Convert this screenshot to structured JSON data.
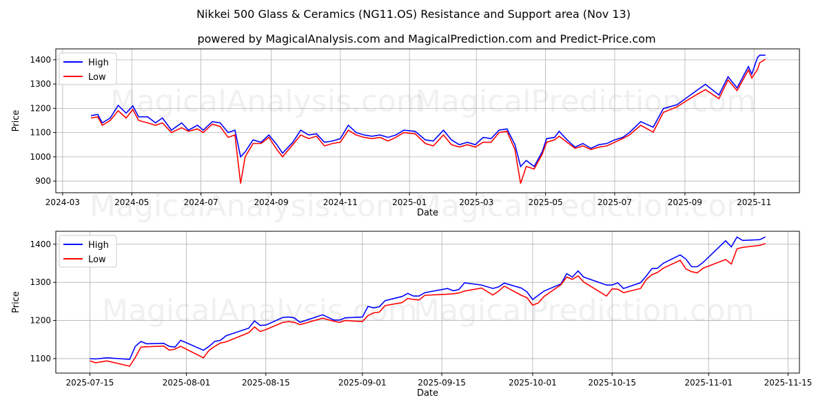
{
  "title": "Nikkei 500 Glass & Ceramics (NG11.OS) Resistance and Support area (Nov 13)",
  "subtitle": "powered by MagicalAnalysis.com and MagicalPrediction.com and Predict-Price.com",
  "watermarks": [
    "MagicalAnalysis.com",
    "MagicalPrediction.com"
  ],
  "colors": {
    "high": "#0000ff",
    "low": "#ff0000",
    "grid": "#b0b0b0"
  },
  "chart_data": [
    {
      "type": "line",
      "xlabel": "Date",
      "ylabel": "Price",
      "xlim": [
        "2024-02-24",
        "2025-12-11"
      ],
      "ylim": [
        852,
        1445
      ],
      "grid": true,
      "legend": "top-left",
      "xticks": [
        "2024-03",
        "2024-05",
        "2024-07",
        "2024-09",
        "2024-11",
        "2025-01",
        "2025-03",
        "2025-05",
        "2025-07",
        "2025-09",
        "2025-11"
      ],
      "yticks": [
        900,
        1000,
        1100,
        1200,
        1300,
        1400
      ],
      "series_names": [
        "High",
        "Low"
      ],
      "x": [
        "2024-03-26",
        "2024-04-01",
        "2024-04-05",
        "2024-04-12",
        "2024-04-19",
        "2024-04-26",
        "2024-05-02",
        "2024-05-07",
        "2024-05-15",
        "2024-05-22",
        "2024-05-28",
        "2024-06-05",
        "2024-06-14",
        "2024-06-20",
        "2024-06-28",
        "2024-07-03",
        "2024-07-11",
        "2024-07-18",
        "2024-07-25",
        "2024-07-31",
        "2024-08-05",
        "2024-08-09",
        "2024-08-16",
        "2024-08-23",
        "2024-08-30",
        "2024-09-06",
        "2024-09-11",
        "2024-09-20",
        "2024-09-27",
        "2024-10-04",
        "2024-10-11",
        "2024-10-18",
        "2024-10-25",
        "2024-11-01",
        "2024-11-08",
        "2024-11-15",
        "2024-11-22",
        "2024-11-29",
        "2024-12-06",
        "2024-12-13",
        "2024-12-20",
        "2024-12-27",
        "2025-01-06",
        "2025-01-15",
        "2025-01-22",
        "2025-01-31",
        "2025-02-07",
        "2025-02-14",
        "2025-02-21",
        "2025-02-28",
        "2025-03-07",
        "2025-03-14",
        "2025-03-21",
        "2025-03-28",
        "2025-04-04",
        "2025-04-09",
        "2025-04-14",
        "2025-04-21",
        "2025-04-28",
        "2025-05-02",
        "2025-05-09",
        "2025-05-13",
        "2025-05-20",
        "2025-05-27",
        "2025-06-03",
        "2025-06-10",
        "2025-06-17",
        "2025-06-24",
        "2025-07-01",
        "2025-07-08",
        "2025-07-14",
        "2025-07-24",
        "2025-08-04",
        "2025-08-13",
        "2025-08-25",
        "2025-09-05",
        "2025-09-19",
        "2025-10-01",
        "2025-10-09",
        "2025-10-17",
        "2025-10-27",
        "2025-10-30",
        "2025-11-04",
        "2025-11-06",
        "2025-11-11"
      ],
      "high": [
        1170,
        1175,
        1140,
        1160,
        1212,
        1180,
        1210,
        1165,
        1165,
        1140,
        1160,
        1110,
        1140,
        1110,
        1130,
        1110,
        1145,
        1140,
        1100,
        1110,
        1000,
        1020,
        1070,
        1060,
        1090,
        1050,
        1015,
        1060,
        1110,
        1090,
        1095,
        1060,
        1065,
        1075,
        1130,
        1100,
        1090,
        1085,
        1090,
        1080,
        1090,
        1110,
        1105,
        1070,
        1065,
        1110,
        1070,
        1050,
        1060,
        1050,
        1080,
        1075,
        1110,
        1115,
        1050,
        960,
        985,
        960,
        1020,
        1075,
        1080,
        1105,
        1070,
        1040,
        1055,
        1035,
        1050,
        1055,
        1070,
        1080,
        1100,
        1145,
        1122,
        1199,
        1215,
        1252,
        1299,
        1255,
        1330,
        1284,
        1372,
        1341,
        1409,
        1419,
        1419
      ],
      "low": [
        1160,
        1165,
        1130,
        1150,
        1190,
        1160,
        1195,
        1150,
        1140,
        1130,
        1140,
        1100,
        1120,
        1105,
        1115,
        1100,
        1135,
        1125,
        1080,
        1090,
        890,
        1000,
        1055,
        1055,
        1080,
        1030,
        1000,
        1050,
        1090,
        1075,
        1085,
        1045,
        1055,
        1060,
        1110,
        1090,
        1080,
        1075,
        1080,
        1065,
        1080,
        1100,
        1095,
        1055,
        1045,
        1090,
        1050,
        1040,
        1050,
        1040,
        1060,
        1060,
        1100,
        1105,
        1030,
        890,
        960,
        950,
        1010,
        1060,
        1070,
        1085,
        1060,
        1035,
        1045,
        1030,
        1040,
        1045,
        1060,
        1075,
        1090,
        1130,
        1102,
        1183,
        1206,
        1239,
        1277,
        1240,
        1317,
        1273,
        1358,
        1325,
        1360,
        1388,
        1402
      ]
    },
    {
      "type": "line",
      "xlabel": "Date",
      "ylabel": "Price",
      "xlim": [
        "2025-07-09",
        "2025-11-17"
      ],
      "ylim": [
        1062,
        1434
      ],
      "grid": true,
      "legend": "top-left",
      "xticks": [
        "2025-07-15",
        "2025-08-01",
        "2025-08-15",
        "2025-09-01",
        "2025-09-15",
        "2025-10-01",
        "2025-10-15",
        "2025-11-01",
        "2025-11-15"
      ],
      "yticks": [
        1100,
        1200,
        1300,
        1400
      ],
      "series_names": [
        "High",
        "Low"
      ],
      "x": [
        "2025-07-15",
        "2025-07-16",
        "2025-07-18",
        "2025-07-22",
        "2025-07-23",
        "2025-07-24",
        "2025-07-25",
        "2025-07-28",
        "2025-07-29",
        "2025-07-30",
        "2025-07-31",
        "2025-08-04",
        "2025-08-05",
        "2025-08-06",
        "2025-08-07",
        "2025-08-08",
        "2025-08-12",
        "2025-08-13",
        "2025-08-14",
        "2025-08-15",
        "2025-08-18",
        "2025-08-19",
        "2025-08-20",
        "2025-08-21",
        "2025-08-25",
        "2025-08-27",
        "2025-08-28",
        "2025-08-29",
        "2025-09-01",
        "2025-09-02",
        "2025-09-03",
        "2025-09-04",
        "2025-09-05",
        "2025-09-08",
        "2025-09-09",
        "2025-09-10",
        "2025-09-11",
        "2025-09-12",
        "2025-09-16",
        "2025-09-17",
        "2025-09-18",
        "2025-09-19",
        "2025-09-22",
        "2025-09-24",
        "2025-09-25",
        "2025-09-26",
        "2025-09-29",
        "2025-09-30",
        "2025-10-01",
        "2025-10-02",
        "2025-10-03",
        "2025-10-06",
        "2025-10-07",
        "2025-10-08",
        "2025-10-09",
        "2025-10-10",
        "2025-10-14",
        "2025-10-15",
        "2025-10-16",
        "2025-10-17",
        "2025-10-20",
        "2025-10-21",
        "2025-10-22",
        "2025-10-23",
        "2025-10-24",
        "2025-10-27",
        "2025-10-28",
        "2025-10-29",
        "2025-10-30",
        "2025-10-31",
        "2025-11-04",
        "2025-11-05",
        "2025-11-06",
        "2025-11-07",
        "2025-11-10",
        "2025-11-11"
      ],
      "high": [
        1100,
        1099,
        1102,
        1098,
        1132,
        1145,
        1139,
        1140,
        1132,
        1130,
        1148,
        1122,
        1132,
        1145,
        1148,
        1160,
        1180,
        1199,
        1187,
        1188,
        1208,
        1209,
        1207,
        1195,
        1215,
        1201,
        1201,
        1207,
        1209,
        1237,
        1233,
        1236,
        1252,
        1263,
        1271,
        1264,
        1264,
        1273,
        1284,
        1278,
        1281,
        1299,
        1293,
        1284,
        1288,
        1298,
        1285,
        1275,
        1255,
        1266,
        1277,
        1296,
        1323,
        1314,
        1330,
        1314,
        1293,
        1293,
        1299,
        1284,
        1299,
        1316,
        1336,
        1337,
        1350,
        1372,
        1361,
        1341,
        1341,
        1352,
        1409,
        1393,
        1419,
        1410,
        1412,
        1419
      ],
      "low": [
        1094,
        1089,
        1094,
        1080,
        1103,
        1130,
        1131,
        1133,
        1122,
        1125,
        1132,
        1102,
        1122,
        1132,
        1141,
        1144,
        1168,
        1183,
        1171,
        1176,
        1195,
        1197,
        1195,
        1189,
        1206,
        1198,
        1195,
        1200,
        1197,
        1213,
        1220,
        1222,
        1239,
        1247,
        1258,
        1255,
        1254,
        1266,
        1269,
        1270,
        1272,
        1277,
        1285,
        1267,
        1277,
        1290,
        1266,
        1260,
        1240,
        1246,
        1263,
        1294,
        1314,
        1308,
        1317,
        1301,
        1264,
        1283,
        1282,
        1273,
        1284,
        1307,
        1320,
        1326,
        1337,
        1358,
        1335,
        1328,
        1325,
        1337,
        1360,
        1348,
        1388,
        1392,
        1397,
        1402
      ]
    }
  ]
}
